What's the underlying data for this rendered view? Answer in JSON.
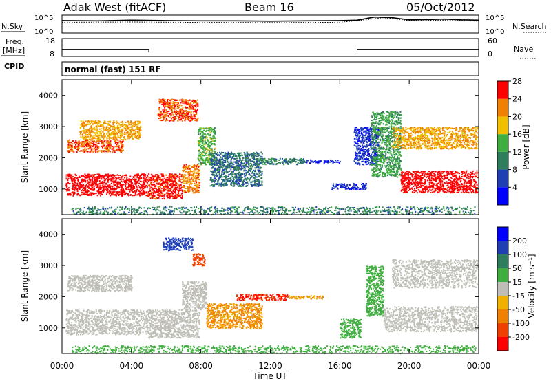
{
  "header": {
    "radar": "Adak West (fitACF)",
    "beam": "Beam 16",
    "date": "05/Oct/2012"
  },
  "noise_panel": {
    "left_label": "N.Sky",
    "right_label": "N.Search",
    "left_ticks": [
      "10^5",
      "10^0"
    ],
    "right_ticks": [
      "10^5",
      "10^0"
    ]
  },
  "freq_panel": {
    "left_label_line1": "Freq.",
    "left_label_line2": "[MHz]",
    "right_label": "Nave",
    "left_ticks": [
      "18",
      "8"
    ],
    "right_ticks": [
      "60",
      "0"
    ]
  },
  "cpid": {
    "label": "CPID",
    "mode": "normal (fast) 151 RF"
  },
  "time_axis": {
    "label": "Time UT",
    "ticks": [
      "00:00",
      "04:00",
      "08:00",
      "12:00",
      "16:00",
      "20:00",
      "00:00"
    ]
  },
  "range_ticks": [
    "1000",
    "2000",
    "3000",
    "4000"
  ],
  "chart_data": [
    {
      "type": "line",
      "name": "noise",
      "xlabel": "",
      "y_scale": "log",
      "ylim": [
        1,
        100000
      ],
      "note_series": "N.Sky (solid), N.Search (dotted)",
      "series": [
        {
          "name": "N.Sky",
          "x": [
            0,
            2,
            4,
            6,
            8,
            10,
            12,
            14,
            16,
            17,
            18,
            19,
            20,
            21,
            22,
            23,
            24
          ],
          "y": [
            3000,
            2500,
            4000,
            3000,
            2500,
            2500,
            2000,
            2500,
            3000,
            4000,
            30000,
            20000,
            5000,
            6000,
            8000,
            5000,
            4000
          ]
        },
        {
          "name": "N.Search",
          "x": [
            0,
            4,
            8,
            12,
            16,
            17.5,
            18.5,
            20,
            22,
            24
          ],
          "y": [
            1000,
            1200,
            900,
            800,
            1000,
            5000,
            20000,
            3000,
            4000,
            2000
          ]
        }
      ]
    },
    {
      "type": "line",
      "name": "frequency",
      "ylim": [
        8,
        18
      ],
      "series": [
        {
          "name": "Freq. [MHz]",
          "x": [
            0,
            5,
            5,
            17,
            17,
            24
          ],
          "y": [
            12,
            12,
            10.5,
            10.5,
            12,
            12
          ]
        },
        {
          "name": "Nave",
          "x": [
            0,
            24
          ],
          "y": [
            18,
            18
          ]
        }
      ]
    },
    {
      "type": "heatmap",
      "name": "power",
      "xlabel": "Time UT",
      "ylabel": "Slant Range [km]",
      "xlim": [
        0,
        24
      ],
      "ylim": [
        180,
        4500
      ],
      "colorbar": {
        "label": "Power [dB]",
        "ticks": [
          "4",
          "8",
          "12",
          "16",
          "20",
          "24",
          "28"
        ],
        "colors": [
          "#0000ff",
          "#1f3fb4",
          "#2e7d5c",
          "#3fae3f",
          "#f0c000",
          "#f08000",
          "#ff0000"
        ]
      },
      "regions": [
        {
          "t0": 0.2,
          "t1": 4.9,
          "r0": 800,
          "r1": 1500,
          "v": 29
        },
        {
          "t0": 4.9,
          "t1": 6.9,
          "r0": 700,
          "r1": 1500,
          "v": 28
        },
        {
          "t0": 6.9,
          "t1": 7.9,
          "r0": 900,
          "r1": 1800,
          "v": 24
        },
        {
          "t0": 0.3,
          "t1": 3.5,
          "r0": 2200,
          "r1": 2600,
          "v": 26
        },
        {
          "t0": 1.0,
          "t1": 4.5,
          "r0": 2600,
          "r1": 3200,
          "v": 22
        },
        {
          "t0": 5.5,
          "t1": 7.8,
          "r0": 3200,
          "r1": 3900,
          "v": 26
        },
        {
          "t0": 7.8,
          "t1": 8.8,
          "r0": 1800,
          "r1": 3000,
          "v": 16
        },
        {
          "t0": 8.5,
          "t1": 11.5,
          "r0": 1100,
          "r1": 2200,
          "v": 11
        },
        {
          "t0": 11.0,
          "t1": 14.0,
          "r0": 1800,
          "r1": 2000,
          "v": 12
        },
        {
          "t0": 14.0,
          "t1": 16.0,
          "r0": 1850,
          "r1": 1950,
          "v": 6
        },
        {
          "t0": 15.5,
          "t1": 17.5,
          "r0": 1000,
          "r1": 1200,
          "v": 7
        },
        {
          "t0": 16.8,
          "t1": 18.2,
          "r0": 1800,
          "r1": 3000,
          "v": 7
        },
        {
          "t0": 17.8,
          "t1": 19.5,
          "r0": 1400,
          "r1": 3500,
          "v": 15
        },
        {
          "t0": 19.5,
          "t1": 23.9,
          "r0": 900,
          "r1": 1600,
          "v": 29
        },
        {
          "t0": 19.0,
          "t1": 23.9,
          "r0": 2300,
          "r1": 3000,
          "v": 22
        },
        {
          "t0": 0.5,
          "t1": 23.8,
          "r0": 200,
          "r1": 450,
          "v": 12
        }
      ]
    },
    {
      "type": "heatmap",
      "name": "velocity",
      "xlabel": "Time UT",
      "ylabel": "Slant Range [km]",
      "xlim": [
        0,
        24
      ],
      "ylim": [
        180,
        4500
      ],
      "colorbar": {
        "label": "Velocity [m s⁻¹]",
        "ticks": [
          "-200",
          "-100",
          "-50",
          "-15",
          "15",
          "50",
          "100",
          "200"
        ],
        "colors": [
          "#ff0000",
          "#f04000",
          "#f08000",
          "#f0b000",
          "#bebeb6",
          "#3fae3f",
          "#2e7d5c",
          "#1f3fb4",
          "#0000ff"
        ],
        "ground_scatter": "#bebeb6"
      },
      "regions": [
        {
          "t0": 0.2,
          "t1": 4.9,
          "r0": 800,
          "r1": 1600,
          "v": 0
        },
        {
          "t0": 4.9,
          "t1": 7.9,
          "r0": 700,
          "r1": 1600,
          "v": 0
        },
        {
          "t0": 6.9,
          "t1": 8.3,
          "r0": 1600,
          "r1": 2500,
          "v": 0
        },
        {
          "t0": 0.3,
          "t1": 4.0,
          "r0": 2200,
          "r1": 2700,
          "v": 0
        },
        {
          "t0": 5.8,
          "t1": 7.5,
          "r0": 3500,
          "r1": 3900,
          "v": 150
        },
        {
          "t0": 7.5,
          "t1": 8.2,
          "r0": 3000,
          "r1": 3400,
          "v": -150
        },
        {
          "t0": 8.3,
          "t1": 11.5,
          "r0": 1000,
          "r1": 1800,
          "v": -60
        },
        {
          "t0": 10.0,
          "t1": 13.0,
          "r0": 1900,
          "r1": 2100,
          "v": -200
        },
        {
          "t0": 13.0,
          "t1": 15.0,
          "r0": 1950,
          "r1": 2050,
          "v": -50
        },
        {
          "t0": 16.0,
          "t1": 17.2,
          "r0": 700,
          "r1": 1300,
          "v": 40
        },
        {
          "t0": 17.5,
          "t1": 18.5,
          "r0": 1400,
          "r1": 3000,
          "v": 30
        },
        {
          "t0": 18.5,
          "t1": 23.9,
          "r0": 900,
          "r1": 1700,
          "v": 0
        },
        {
          "t0": 19.0,
          "t1": 23.9,
          "r0": 2300,
          "r1": 3200,
          "v": 0
        },
        {
          "t0": 0.5,
          "t1": 23.8,
          "r0": 200,
          "r1": 450,
          "v": 40
        }
      ]
    }
  ]
}
